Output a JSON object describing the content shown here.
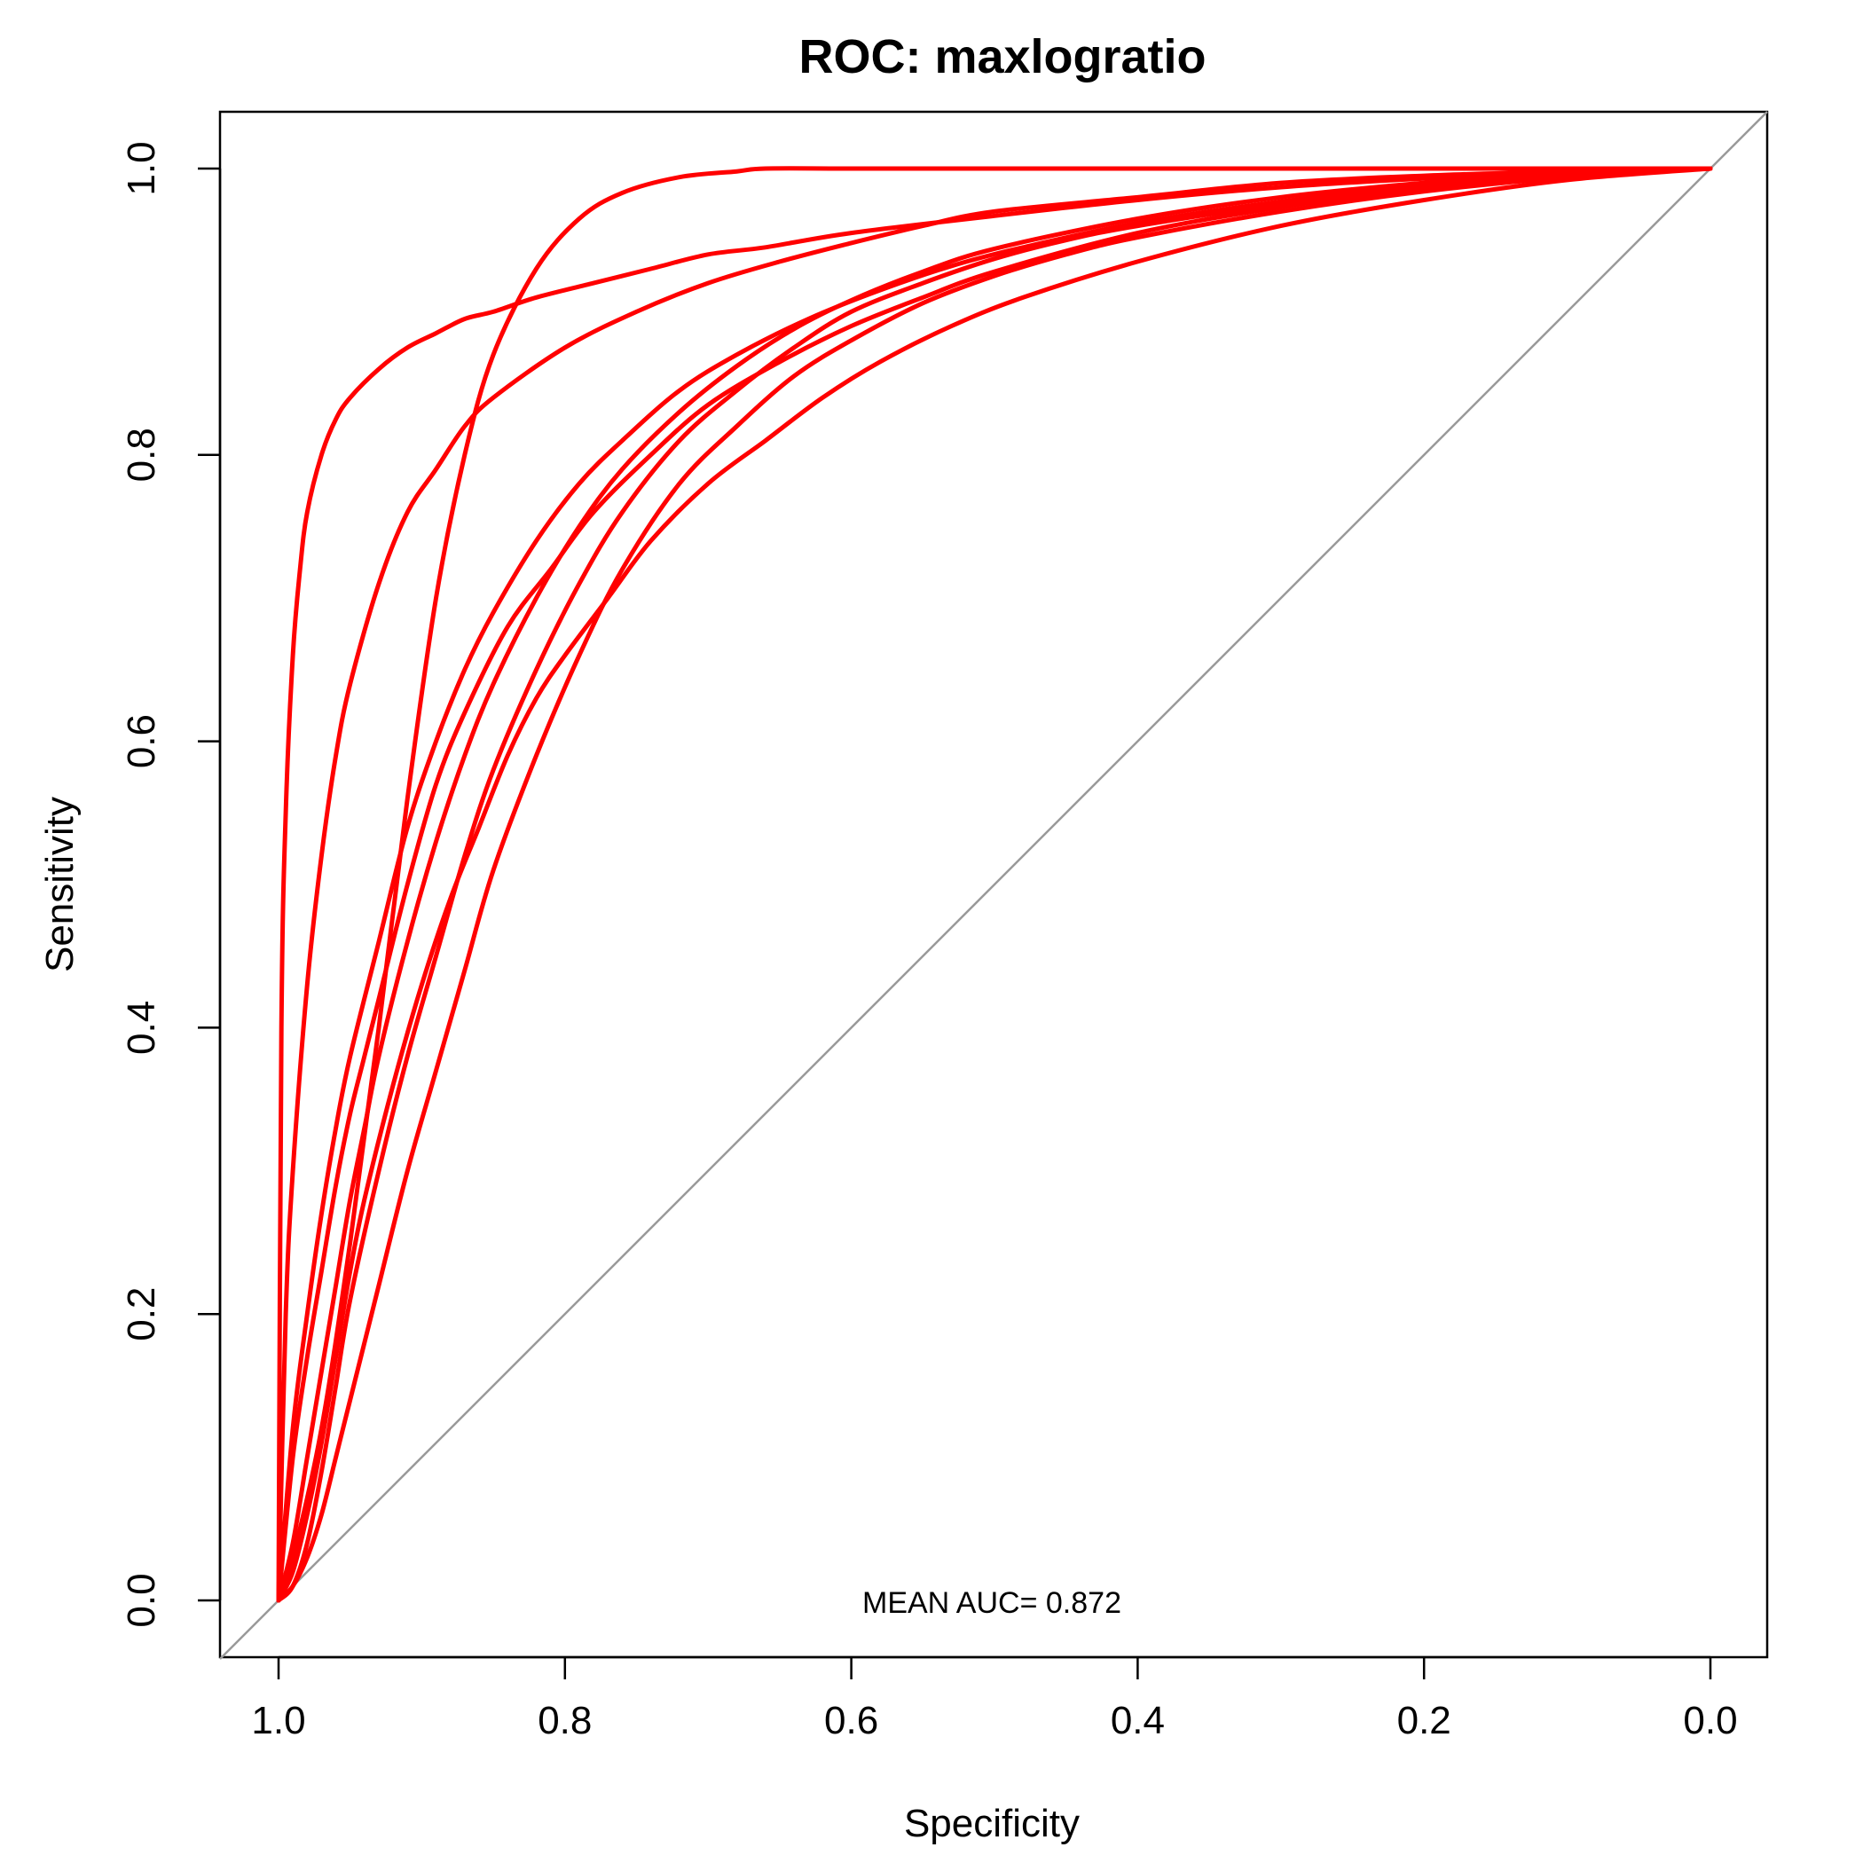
{
  "chart_data": {
    "type": "line",
    "title": "ROC: maxlogratio",
    "xlabel": "Specificity",
    "ylabel": "Sensitivity",
    "xlim": [
      1.0,
      0.0
    ],
    "ylim": [
      0.0,
      1.0
    ],
    "x_reversed": true,
    "grid": false,
    "legend": "none",
    "x_ticks": [
      "1.0",
      "0.8",
      "0.6",
      "0.4",
      "0.2",
      "0.0"
    ],
    "y_ticks": [
      "0.0",
      "0.2",
      "0.4",
      "0.6",
      "0.8",
      "1.0"
    ],
    "annotation": "MEAN AUC= 0.872",
    "reference_line": {
      "from": [
        1.0,
        0.0
      ],
      "to": [
        0.0,
        1.0
      ],
      "color": "#999999"
    },
    "series_color": "#ff0000",
    "series": [
      {
        "x": [
          1.0,
          0.998,
          0.995,
          0.99,
          0.985,
          0.98,
          0.97,
          0.96,
          0.95,
          0.93,
          0.91,
          0.89,
          0.87,
          0.85,
          0.82,
          0.78,
          0.74,
          0.7,
          0.66,
          0.6,
          0.5,
          0.4,
          0.3,
          0.2,
          0.1,
          0.0
        ],
        "y": [
          0.0,
          0.4,
          0.55,
          0.66,
          0.72,
          0.76,
          0.8,
          0.825,
          0.84,
          0.86,
          0.875,
          0.885,
          0.895,
          0.9,
          0.91,
          0.92,
          0.93,
          0.94,
          0.945,
          0.955,
          0.967,
          0.978,
          0.987,
          0.993,
          0.997,
          1.0
        ]
      },
      {
        "x": [
          1.0,
          0.99,
          0.97,
          0.95,
          0.93,
          0.91,
          0.89,
          0.87,
          0.85,
          0.82,
          0.79,
          0.76,
          0.72,
          0.68,
          0.66,
          0.6,
          0.5,
          0.4,
          0.3,
          0.2,
          0.1,
          0.0
        ],
        "y": [
          0.0,
          0.03,
          0.12,
          0.25,
          0.4,
          0.56,
          0.7,
          0.8,
          0.87,
          0.93,
          0.965,
          0.983,
          0.994,
          0.998,
          1.0,
          1.0,
          1.0,
          1.0,
          1.0,
          1.0,
          1.0,
          1.0
        ]
      },
      {
        "x": [
          1.0,
          0.995,
          0.99,
          0.98,
          0.97,
          0.96,
          0.95,
          0.93,
          0.91,
          0.89,
          0.87,
          0.85,
          0.8,
          0.75,
          0.7,
          0.65,
          0.6,
          0.55,
          0.5,
          0.4,
          0.3,
          0.2,
          0.1,
          0.0
        ],
        "y": [
          0.0,
          0.2,
          0.3,
          0.43,
          0.52,
          0.59,
          0.64,
          0.71,
          0.76,
          0.79,
          0.82,
          0.84,
          0.875,
          0.9,
          0.92,
          0.935,
          0.948,
          0.96,
          0.97,
          0.98,
          0.99,
          0.995,
          0.998,
          1.0
        ]
      },
      {
        "x": [
          1.0,
          0.99,
          0.98,
          0.97,
          0.96,
          0.95,
          0.93,
          0.91,
          0.89,
          0.87,
          0.85,
          0.82,
          0.79,
          0.76,
          0.72,
          0.68,
          0.63,
          0.58,
          0.53,
          0.48,
          0.4,
          0.3,
          0.2,
          0.1,
          0.0
        ],
        "y": [
          0.0,
          0.12,
          0.2,
          0.27,
          0.33,
          0.38,
          0.46,
          0.54,
          0.6,
          0.65,
          0.69,
          0.74,
          0.78,
          0.81,
          0.845,
          0.87,
          0.895,
          0.915,
          0.932,
          0.945,
          0.962,
          0.977,
          0.988,
          0.996,
          1.0
        ]
      },
      {
        "x": [
          1.0,
          0.99,
          0.98,
          0.97,
          0.96,
          0.95,
          0.94,
          0.93,
          0.91,
          0.89,
          0.87,
          0.84,
          0.81,
          0.78,
          0.74,
          0.7,
          0.65,
          0.6,
          0.55,
          0.5,
          0.4,
          0.3,
          0.2,
          0.1,
          0.0
        ],
        "y": [
          0.0,
          0.1,
          0.17,
          0.23,
          0.29,
          0.34,
          0.38,
          0.42,
          0.5,
          0.57,
          0.62,
          0.68,
          0.72,
          0.76,
          0.8,
          0.835,
          0.865,
          0.89,
          0.91,
          0.928,
          0.955,
          0.973,
          0.986,
          0.995,
          1.0
        ]
      },
      {
        "x": [
          1.0,
          0.99,
          0.98,
          0.97,
          0.96,
          0.95,
          0.94,
          0.93,
          0.91,
          0.89,
          0.87,
          0.85,
          0.82,
          0.79,
          0.76,
          0.72,
          0.68,
          0.64,
          0.6,
          0.55,
          0.5,
          0.4,
          0.3,
          0.2,
          0.1,
          0.0
        ],
        "y": [
          0.0,
          0.04,
          0.1,
          0.16,
          0.22,
          0.28,
          0.33,
          0.38,
          0.46,
          0.53,
          0.59,
          0.64,
          0.7,
          0.75,
          0.79,
          0.83,
          0.862,
          0.888,
          0.908,
          0.928,
          0.944,
          0.965,
          0.98,
          0.99,
          0.997,
          1.0
        ]
      },
      {
        "x": [
          1.0,
          0.99,
          0.98,
          0.97,
          0.96,
          0.95,
          0.93,
          0.91,
          0.89,
          0.87,
          0.85,
          0.82,
          0.79,
          0.76,
          0.72,
          0.68,
          0.64,
          0.6,
          0.55,
          0.5,
          0.45,
          0.4,
          0.3,
          0.2,
          0.1,
          0.0
        ],
        "y": [
          0.0,
          0.01,
          0.04,
          0.09,
          0.15,
          0.21,
          0.3,
          0.38,
          0.45,
          0.52,
          0.58,
          0.65,
          0.71,
          0.76,
          0.81,
          0.845,
          0.875,
          0.9,
          0.92,
          0.937,
          0.95,
          0.96,
          0.975,
          0.986,
          0.995,
          1.0
        ]
      },
      {
        "x": [
          1.0,
          0.99,
          0.98,
          0.97,
          0.96,
          0.95,
          0.93,
          0.91,
          0.89,
          0.87,
          0.85,
          0.82,
          0.79,
          0.76,
          0.72,
          0.68,
          0.64,
          0.6,
          0.55,
          0.5,
          0.45,
          0.4,
          0.3,
          0.2,
          0.1,
          0.0
        ],
        "y": [
          0.0,
          0.01,
          0.03,
          0.06,
          0.1,
          0.14,
          0.22,
          0.3,
          0.37,
          0.44,
          0.51,
          0.59,
          0.66,
          0.72,
          0.78,
          0.82,
          0.855,
          0.88,
          0.906,
          0.925,
          0.94,
          0.952,
          0.97,
          0.984,
          0.994,
          1.0
        ]
      },
      {
        "x": [
          1.0,
          0.99,
          0.98,
          0.97,
          0.96,
          0.95,
          0.94,
          0.92,
          0.9,
          0.88,
          0.86,
          0.84,
          0.82,
          0.8,
          0.77,
          0.74,
          0.7,
          0.66,
          0.62,
          0.58,
          0.53,
          0.48,
          0.4,
          0.3,
          0.2,
          0.1,
          0.0
        ],
        "y": [
          0.0,
          0.02,
          0.06,
          0.11,
          0.17,
          0.23,
          0.28,
          0.36,
          0.43,
          0.49,
          0.54,
          0.59,
          0.63,
          0.66,
          0.7,
          0.74,
          0.78,
          0.81,
          0.84,
          0.865,
          0.89,
          0.91,
          0.935,
          0.96,
          0.978,
          0.992,
          1.0
        ]
      }
    ]
  }
}
